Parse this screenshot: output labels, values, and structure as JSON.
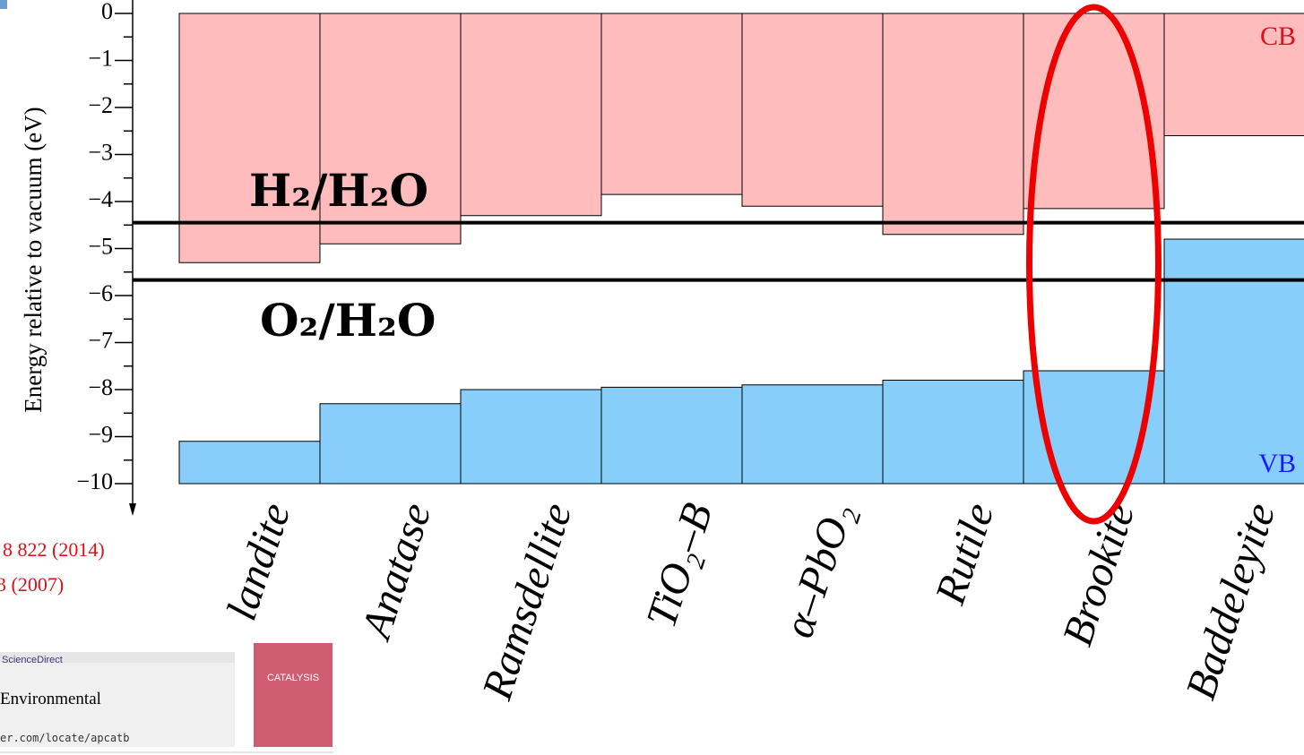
{
  "chart_data": {
    "type": "band",
    "y_label": "Energy relative to vacuum (eV)",
    "categories": [
      "landite",
      "Anatase",
      "Ramsdellite",
      "TiO₂–B",
      "α–PbO₂",
      "Rutile",
      "Brookite",
      "Baddeleyite"
    ],
    "series": [
      {
        "name": "CB",
        "color": "#ffbcbc",
        "label_color": "#e0101a",
        "values": [
          -5.3,
          -4.9,
          -4.3,
          -3.85,
          -4.1,
          -4.7,
          -4.15,
          -2.6
        ]
      },
      {
        "name": "VB",
        "color": "#87cefa",
        "label_color": "#1a1aff",
        "values": [
          -9.1,
          -8.3,
          -8.0,
          -7.95,
          -7.9,
          -7.8,
          -7.6,
          -4.8
        ]
      }
    ],
    "reference_lines": [
      {
        "label": "H₂/H₂O",
        "value": -4.45
      },
      {
        "label": "O₂/H₂O",
        "value": -5.67
      }
    ],
    "ylim": [
      -10,
      0
    ],
    "yticks": [
      0,
      {
        "value": -1,
        "label": "−1"
      },
      {
        "value": -2,
        "label": "−2"
      },
      {
        "value": -3,
        "label": "−3"
      },
      {
        "value": -4,
        "label": "−4"
      },
      {
        "value": -5,
        "label": "−5"
      },
      {
        "value": -6,
        "label": "−6"
      },
      {
        "value": -7,
        "label": "−7"
      },
      {
        "value": -8,
        "label": "−8"
      },
      {
        "value": -9,
        "label": "−9"
      },
      {
        "value": -10,
        "label": "−10"
      }
    ],
    "highlight_category": 6
  },
  "overlay": {
    "citation_1": ". 8 822 (2014)",
    "citation_2": "3 (2007)",
    "source": "ScienceDirect",
    "journal": "Environmental",
    "url": "er.com/locate/apcatb",
    "cover_title": "CATALYSIS"
  }
}
